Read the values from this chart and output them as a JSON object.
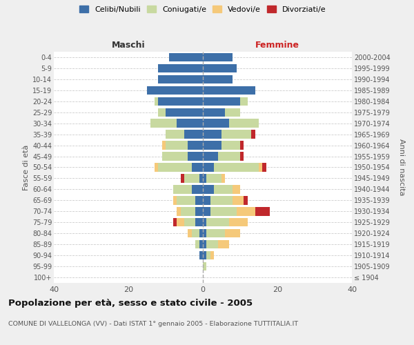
{
  "age_groups": [
    "100+",
    "95-99",
    "90-94",
    "85-89",
    "80-84",
    "75-79",
    "70-74",
    "65-69",
    "60-64",
    "55-59",
    "50-54",
    "45-49",
    "40-44",
    "35-39",
    "30-34",
    "25-29",
    "20-24",
    "15-19",
    "10-14",
    "5-9",
    "0-4"
  ],
  "birth_years": [
    "≤ 1904",
    "1905-1909",
    "1910-1914",
    "1915-1919",
    "1920-1924",
    "1925-1929",
    "1930-1934",
    "1935-1939",
    "1940-1944",
    "1945-1949",
    "1950-1954",
    "1955-1959",
    "1960-1964",
    "1965-1969",
    "1970-1974",
    "1975-1979",
    "1980-1984",
    "1985-1989",
    "1990-1994",
    "1995-1999",
    "2000-2004"
  ],
  "maschi": {
    "celibi": [
      0,
      0,
      1,
      1,
      1,
      2,
      2,
      2,
      3,
      1,
      3,
      4,
      4,
      5,
      7,
      10,
      12,
      15,
      12,
      12,
      9
    ],
    "coniugati": [
      0,
      0,
      0,
      1,
      2,
      3,
      4,
      5,
      5,
      4,
      9,
      7,
      6,
      5,
      7,
      2,
      1,
      0,
      0,
      0,
      0
    ],
    "vedovi": [
      0,
      0,
      0,
      0,
      1,
      2,
      1,
      1,
      0,
      0,
      1,
      0,
      1,
      0,
      0,
      0,
      0,
      0,
      0,
      0,
      0
    ],
    "divorziati": [
      0,
      0,
      0,
      0,
      0,
      1,
      0,
      0,
      0,
      1,
      0,
      0,
      0,
      0,
      0,
      0,
      0,
      0,
      0,
      0,
      0
    ]
  },
  "femmine": {
    "nubili": [
      0,
      0,
      1,
      1,
      1,
      1,
      2,
      2,
      3,
      1,
      3,
      4,
      5,
      5,
      7,
      6,
      10,
      14,
      8,
      9,
      8
    ],
    "coniugate": [
      0,
      1,
      1,
      3,
      5,
      6,
      7,
      6,
      5,
      4,
      12,
      6,
      5,
      8,
      8,
      4,
      2,
      0,
      0,
      0,
      0
    ],
    "vedove": [
      0,
      0,
      1,
      3,
      4,
      5,
      5,
      3,
      2,
      1,
      1,
      0,
      0,
      0,
      0,
      0,
      0,
      0,
      0,
      0,
      0
    ],
    "divorziate": [
      0,
      0,
      0,
      0,
      0,
      0,
      4,
      1,
      0,
      0,
      1,
      1,
      1,
      1,
      0,
      0,
      0,
      0,
      0,
      0,
      0
    ]
  },
  "colors": {
    "celibi_nubili": "#3d6fa8",
    "coniugati": "#c8d9a0",
    "vedovi": "#f5c97a",
    "divorziati": "#c0282c"
  },
  "xlim": 40,
  "title": "Popolazione per età, sesso e stato civile - 2005",
  "subtitle": "COMUNE DI VALLELONGA (VV) - Dati ISTAT 1° gennaio 2005 - Elaborazione TUTTITALIA.IT",
  "ylabel_left": "Fasce di età",
  "ylabel_right": "Anni di nascita",
  "xlabel_left": "Maschi",
  "xlabel_right": "Femmine",
  "bg_color": "#efefef",
  "plot_bg_color": "#ffffff"
}
